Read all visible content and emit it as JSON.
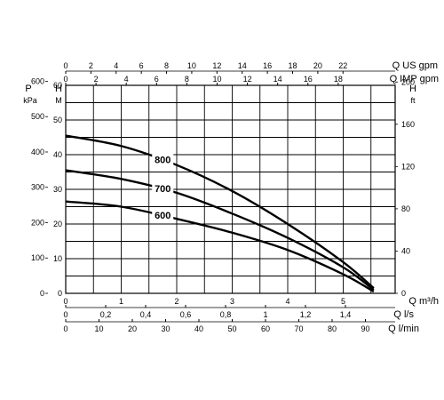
{
  "chart_data": {
    "type": "line",
    "title": "",
    "grid": true,
    "x_axis": {
      "label": "Q m³/h",
      "range": [
        0,
        6
      ],
      "ticks": [
        "0",
        "1",
        "2",
        "3",
        "4",
        "5"
      ],
      "ticks_values": [
        0,
        1,
        2,
        3,
        4,
        5
      ]
    },
    "secondary_x_axes": [
      {
        "position": "top",
        "label": "Q US gpm",
        "ticks": [
          "0",
          "2",
          "4",
          "6",
          "8",
          "10",
          "12",
          "14",
          "16",
          "18",
          "20",
          "22"
        ],
        "values": [
          0,
          2,
          4,
          6,
          8,
          10,
          12,
          14,
          16,
          18,
          20,
          22
        ]
      },
      {
        "position": "top",
        "label": "Q IMP gpm",
        "ticks": [
          "0",
          "2",
          "4",
          "6",
          "8",
          "10",
          "12",
          "14",
          "16",
          "18"
        ],
        "values": [
          0,
          2,
          4,
          6,
          8,
          10,
          12,
          14,
          16,
          18
        ]
      },
      {
        "position": "bottom",
        "label": "Q l/s",
        "ticks": [
          "0",
          "0,2",
          "0,4",
          "0,6",
          "0,8",
          "1",
          "1,2",
          "1,4"
        ],
        "values": [
          0,
          0.2,
          0.4,
          0.6,
          0.8,
          1.0,
          1.2,
          1.4
        ]
      },
      {
        "position": "bottom",
        "label": "Q l/min",
        "ticks": [
          "0",
          "10",
          "20",
          "30",
          "40",
          "50",
          "60",
          "70",
          "80",
          "90"
        ],
        "values": [
          0,
          10,
          20,
          30,
          40,
          50,
          60,
          70,
          80,
          90
        ]
      }
    ],
    "y_axes": [
      {
        "position": "left-outer",
        "label_top": "P",
        "label_sub": "kPa",
        "ticks": [
          "0",
          "100",
          "200",
          "300",
          "400",
          "500",
          "600"
        ],
        "values": [
          0,
          100,
          200,
          300,
          400,
          500,
          600
        ]
      },
      {
        "position": "left",
        "label_top": "H",
        "label_sub": "M",
        "range": [
          0,
          60
        ],
        "ticks": [
          "0",
          "10",
          "20",
          "30",
          "40",
          "50",
          "60"
        ],
        "values": [
          0,
          10,
          20,
          30,
          40,
          50,
          60
        ]
      },
      {
        "position": "right",
        "label_top": "H",
        "label_sub": "ft",
        "ticks": [
          "0",
          "40",
          "80",
          "120",
          "160",
          "200"
        ],
        "values": [
          0,
          40,
          80,
          120,
          160,
          200
        ]
      }
    ],
    "series": [
      {
        "name": "800",
        "x": [
          0,
          1,
          2,
          3,
          4,
          5,
          5.55
        ],
        "y": [
          45.5,
          42.5,
          37.0,
          29.5,
          20.0,
          9.0,
          1.5
        ]
      },
      {
        "name": "700",
        "x": [
          0,
          1,
          2,
          3,
          4,
          5,
          5.55
        ],
        "y": [
          35.5,
          33.0,
          29.0,
          23.0,
          16.0,
          7.5,
          1.0
        ]
      },
      {
        "name": "600",
        "x": [
          0,
          1,
          2,
          3,
          4,
          5,
          5.55
        ],
        "y": [
          26.5,
          25.0,
          21.5,
          17.5,
          12.5,
          5.5,
          0.5
        ]
      }
    ],
    "series_label_x": 1.7
  }
}
